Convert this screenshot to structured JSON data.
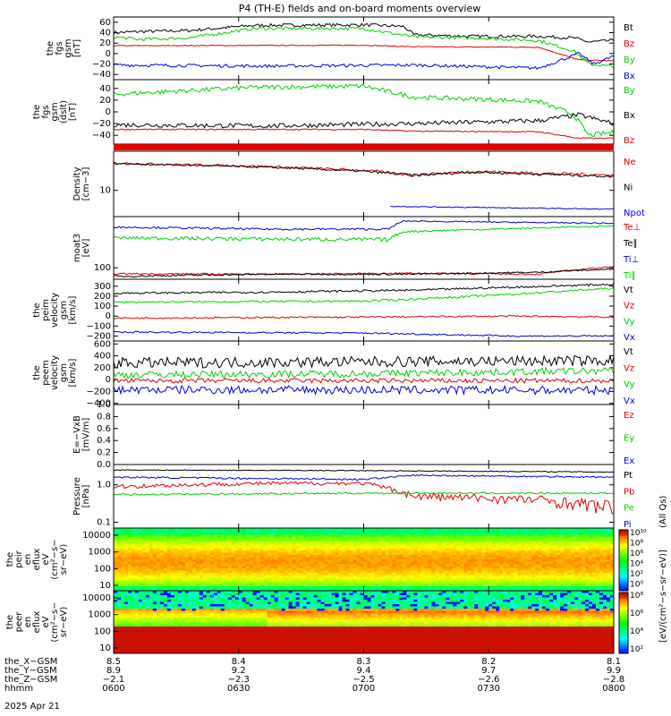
{
  "title": "P4 (TH-E) fields and on-board moments overview",
  "colors": {
    "black": "#000000",
    "red": "#e00000",
    "green": "#00d000",
    "blue": "#0000e0"
  },
  "chart_data": [
    {
      "type": "line",
      "ylabel": [
        "the",
        "fgs",
        "gsm",
        "[nT]"
      ],
      "ylim": [
        -50,
        70
      ],
      "yticks": [
        "60",
        "40",
        "20",
        "0",
        "−20",
        "−40"
      ],
      "series": [
        {
          "name": "Bt",
          "color": "black",
          "levels": [
            [
              0,
              40
            ],
            [
              0.05,
              42
            ],
            [
              0.15,
              44
            ],
            [
              0.28,
              54
            ],
            [
              0.5,
              55
            ],
            [
              0.58,
              52
            ],
            [
              0.6,
              36
            ],
            [
              0.72,
              33
            ],
            [
              0.85,
              33
            ],
            [
              0.92,
              30
            ],
            [
              0.95,
              22
            ],
            [
              1,
              25
            ]
          ],
          "noise": 3
        },
        {
          "name": "Bz",
          "color": "red",
          "levels": [
            [
              0,
              15
            ],
            [
              0.5,
              16
            ],
            [
              0.6,
              13
            ],
            [
              0.85,
              12
            ],
            [
              0.93,
              -12
            ],
            [
              1,
              -14
            ]
          ],
          "noise": 0.8
        },
        {
          "name": "By",
          "color": "green",
          "levels": [
            [
              0,
              32
            ],
            [
              0.05,
              27
            ],
            [
              0.15,
              30
            ],
            [
              0.28,
              48
            ],
            [
              0.5,
              48
            ],
            [
              0.6,
              32
            ],
            [
              0.72,
              30
            ],
            [
              0.85,
              25
            ],
            [
              0.92,
              5
            ],
            [
              0.95,
              -20
            ],
            [
              1,
              -25
            ]
          ],
          "noise": 3
        },
        {
          "name": "Bx",
          "color": "blue",
          "levels": [
            [
              0,
              -22
            ],
            [
              0.3,
              -24
            ],
            [
              0.6,
              -22
            ],
            [
              0.85,
              -28
            ],
            [
              0.93,
              0
            ],
            [
              0.96,
              -20
            ],
            [
              1,
              -5
            ]
          ],
          "noise": 3
        }
      ]
    },
    {
      "type": "line",
      "ylabel": [
        "the",
        "fgs",
        "gsm",
        "(dslt)",
        "[nT]"
      ],
      "ylim": [
        -55,
        55
      ],
      "yticks": [
        "40",
        "20",
        "0",
        "−20",
        "−40"
      ],
      "series": [
        {
          "name": "By",
          "color": "green",
          "levels": [
            [
              0,
              30
            ],
            [
              0.28,
              42
            ],
            [
              0.5,
              44
            ],
            [
              0.6,
              25
            ],
            [
              0.72,
              22
            ],
            [
              0.85,
              18
            ],
            [
              0.92,
              -5
            ],
            [
              0.95,
              -40
            ],
            [
              1,
              -35
            ]
          ],
          "noise": 4
        },
        {
          "name": "Bx",
          "color": "black",
          "levels": [
            [
              0,
              -22
            ],
            [
              0.3,
              -24
            ],
            [
              0.6,
              -20
            ],
            [
              0.85,
              -15
            ],
            [
              0.93,
              -5
            ],
            [
              1,
              -20
            ]
          ],
          "noise": 4
        },
        {
          "name": "Bz",
          "color": "red",
          "levels": [
            [
              0,
              -30
            ],
            [
              0.5,
              -30
            ],
            [
              0.6,
              -33
            ],
            [
              0.85,
              -34
            ],
            [
              0.93,
              -45
            ],
            [
              1,
              -45
            ]
          ],
          "noise": 1
        }
      ]
    },
    {
      "type": "line",
      "ylabel": [
        "Density",
        "[cm−3]"
      ],
      "ylim": [
        3,
        60
      ],
      "log": true,
      "yticks": [
        "10"
      ],
      "ytickvals": [
        10
      ],
      "series": [
        {
          "name": "Ne",
          "color": "red",
          "levels": [
            [
              0,
              35
            ],
            [
              0.3,
              30
            ],
            [
              0.5,
              25
            ],
            [
              0.6,
              20
            ],
            [
              0.72,
              24
            ],
            [
              0.85,
              22
            ],
            [
              1,
              20
            ]
          ],
          "noise": 1.5
        },
        {
          "name": "Ni",
          "color": "black",
          "levels": [
            [
              0,
              34
            ],
            [
              0.3,
              29
            ],
            [
              0.5,
              24
            ],
            [
              0.6,
              20
            ],
            [
              0.72,
              23
            ],
            [
              0.85,
              21
            ],
            [
              1,
              19
            ]
          ],
          "noise": 1.2
        },
        {
          "name": "Npot",
          "color": "blue",
          "levels": [
            [
              0.55,
              4.8
            ],
            [
              0.7,
              4.6
            ],
            [
              1,
              4.2
            ]
          ],
          "noise": 0.1
        }
      ]
    },
    {
      "type": "line",
      "ylabel": [
        "moat3",
        "[eV]"
      ],
      "ylim": [
        40,
        6000
      ],
      "log": true,
      "yticks": [
        "100"
      ],
      "ytickvals": [
        100
      ],
      "series": [
        {
          "name": "Te⊥",
          "color": "red",
          "levels": [
            [
              0,
              62
            ],
            [
              0.35,
              60
            ],
            [
              0.6,
              65
            ],
            [
              0.85,
              60
            ],
            [
              1,
              110
            ]
          ],
          "noise": 4
        },
        {
          "name": "Te∥",
          "color": "black",
          "levels": [
            [
              0,
              50
            ],
            [
              0.3,
              60
            ],
            [
              0.6,
              60
            ],
            [
              0.85,
              70
            ],
            [
              1,
              90
            ]
          ],
          "noise": 4
        },
        {
          "name": "Ti⊥",
          "color": "blue",
          "levels": [
            [
              0,
              2600
            ],
            [
              0.3,
              2200
            ],
            [
              0.55,
              2200
            ],
            [
              0.58,
              4200
            ],
            [
              0.8,
              3800
            ],
            [
              1,
              3500
            ]
          ],
          "noise": 180
        },
        {
          "name": "Ti∥",
          "color": "green",
          "levels": [
            [
              0,
              1100
            ],
            [
              0.3,
              1000
            ],
            [
              0.55,
              950
            ],
            [
              0.58,
              1800
            ],
            [
              0.8,
              2300
            ],
            [
              1,
              2800
            ]
          ],
          "noise": 150
        }
      ]
    },
    {
      "type": "line",
      "ylabel": [
        "the",
        "peim",
        "velocity",
        "gsm",
        "[km/s]"
      ],
      "ylim": [
        -250,
        370
      ],
      "yticks": [
        "300",
        "200",
        "100",
        "0",
        "−100",
        "−200"
      ],
      "series": [
        {
          "name": "Vt",
          "color": "black",
          "levels": [
            [
              0,
              230
            ],
            [
              0.3,
              240
            ],
            [
              0.6,
              260
            ],
            [
              0.8,
              290
            ],
            [
              1,
              320
            ]
          ],
          "noise": 10
        },
        {
          "name": "Vz",
          "color": "red",
          "levels": [
            [
              0,
              -20
            ],
            [
              0.5,
              -10
            ],
            [
              0.8,
              0
            ],
            [
              1,
              -10
            ]
          ],
          "noise": 8
        },
        {
          "name": "Vy",
          "color": "green",
          "levels": [
            [
              0,
              140
            ],
            [
              0.5,
              150
            ],
            [
              0.6,
              170
            ],
            [
              0.8,
              220
            ],
            [
              1,
              280
            ]
          ],
          "noise": 10
        },
        {
          "name": "Vx",
          "color": "blue",
          "levels": [
            [
              0,
              -160
            ],
            [
              0.5,
              -170
            ],
            [
              0.8,
              -200
            ],
            [
              1,
              -200
            ]
          ],
          "noise": 8
        }
      ]
    },
    {
      "type": "line",
      "ylabel": [
        "the",
        "peem",
        "velocity",
        "gsm",
        "[km/s]"
      ],
      "ylim": [
        -420,
        650
      ],
      "yticks": [
        "600",
        "400",
        "200",
        "0",
        "−200",
        "−400"
      ],
      "series": [
        {
          "name": "Vt",
          "color": "black",
          "levels": [
            [
              0,
              280
            ],
            [
              0.5,
              300
            ],
            [
              1,
              320
            ]
          ],
          "noise": 90
        },
        {
          "name": "Vz",
          "color": "red",
          "levels": [
            [
              0,
              -20
            ],
            [
              1,
              -20
            ]
          ],
          "noise": 40
        },
        {
          "name": "Vy",
          "color": "green",
          "levels": [
            [
              0,
              80
            ],
            [
              0.5,
              100
            ],
            [
              1,
              150
            ]
          ],
          "noise": 60
        },
        {
          "name": "Vx",
          "color": "blue",
          "levels": [
            [
              0,
              -170
            ],
            [
              1,
              -180
            ]
          ],
          "noise": 70
        }
      ]
    },
    {
      "type": "line",
      "ylabel": [
        "E=−VxB",
        "[mV/m]"
      ],
      "ylim": [
        0,
        1
      ],
      "yticks": [
        "1.0",
        "0.8",
        "0.6",
        "0.4",
        "0.2",
        "0.0"
      ],
      "series": [
        {
          "name": "Ez",
          "color": "red",
          "levels": [],
          "noise": 0
        },
        {
          "name": "Ey",
          "color": "green",
          "levels": [],
          "noise": 0
        },
        {
          "name": "Ex",
          "color": "blue",
          "levels": [],
          "noise": 0
        }
      ]
    },
    {
      "type": "line",
      "ylabel": [
        "Pressure",
        "[nPa]"
      ],
      "ylim": [
        0.07,
        3.5
      ],
      "log": true,
      "yticks": [
        "1.0",
        "0.1"
      ],
      "ytickvals": [
        1,
        0.1
      ],
      "series": [
        {
          "name": "Pt",
          "color": "black",
          "levels": [
            [
              0,
              2.5
            ],
            [
              0.5,
              2.4
            ],
            [
              1,
              2.2
            ]
          ],
          "noise": 0.06
        },
        {
          "name": "Pb",
          "color": "red",
          "levels": [
            [
              0,
              0.9
            ],
            [
              0.3,
              1.1
            ],
            [
              0.5,
              1.1
            ],
            [
              0.6,
              0.5
            ],
            [
              0.85,
              0.4
            ],
            [
              1,
              0.25
            ]
          ],
          "noise": 0.12
        },
        {
          "name": "Pe",
          "color": "green",
          "levels": [
            [
              0,
              0.55
            ],
            [
              0.5,
              0.6
            ],
            [
              1,
              0.6
            ]
          ],
          "noise": 0.03
        },
        {
          "name": "Pi",
          "color": "blue",
          "levels": [
            [
              0,
              1.6
            ],
            [
              0.5,
              1.4
            ],
            [
              0.6,
              1.8
            ],
            [
              1,
              1.6
            ]
          ],
          "noise": 0.08
        }
      ]
    },
    {
      "type": "heatmap",
      "ylabel": [
        "the",
        "peir",
        "en",
        "eflux",
        "eV",
        "(cm²−s−",
        "sr−eV)"
      ],
      "yticks": [
        "10000",
        "1000",
        "100",
        "10"
      ]
    },
    {
      "type": "heatmap",
      "ylabel": [
        "the",
        "peer",
        "en",
        "eflux",
        "eV",
        "(cm²−s−",
        "sr−eV)"
      ],
      "yticks": [
        "10000",
        "1000",
        "100",
        "10"
      ]
    }
  ],
  "colorbar": {
    "label": "[eV/(cm²−s−sr−eV)]",
    "label2": "(All Qs)",
    "ticks_top": [
      "10¹⁰",
      "10⁸",
      "10⁶",
      "10⁴",
      "10²",
      "10⁰"
    ],
    "ticks_bottom": [
      "10⁸",
      "10⁶",
      "10⁴",
      "10²"
    ]
  },
  "xaxis": {
    "tick_rows": [
      {
        "label": "the_X−GSM",
        "values": [
          "8.5",
          "8.4",
          "8.3",
          "8.2",
          "8.1"
        ]
      },
      {
        "label": "the_Y−GSM",
        "values": [
          "8.9",
          "9.2",
          "9.4",
          "9.7",
          "9.9"
        ]
      },
      {
        "label": "the_Z−GSM",
        "values": [
          "−2.1",
          "−2.3",
          "−2.5",
          "−2.6",
          "−2.8"
        ]
      },
      {
        "label": "hhmm",
        "values": [
          "0600",
          "0630",
          "0700",
          "0730",
          "0800"
        ]
      }
    ],
    "date": "2025 Apr 21"
  }
}
